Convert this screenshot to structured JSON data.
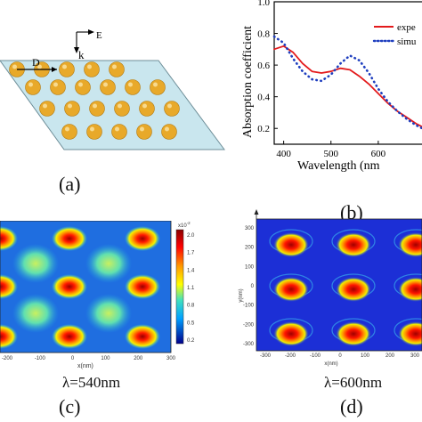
{
  "panel_a": {
    "field_label": "E",
    "k_label": "k",
    "d_label": "D",
    "caption": "(a)",
    "rows": [
      5,
      6,
      6,
      5
    ],
    "colors": {
      "slab": "#c9e6ee",
      "sphere": "#e8a92a"
    }
  },
  "panel_b": {
    "caption": "(b)",
    "chart_data": {
      "type": "line",
      "xlabel": "Wavelength (nm",
      "ylabel": "Absorption coefficient",
      "xticks": [
        "400",
        "500",
        "600"
      ],
      "yticks": [
        "0.2",
        "0.4",
        "0.6",
        "0.8",
        "1.0"
      ],
      "xlim": [
        380,
        700
      ],
      "ylim": [
        0.1,
        1.0
      ],
      "legend": [
        "expe",
        "simu"
      ],
      "legend_placement": "top-right",
      "series": [
        {
          "name": "expe",
          "color": "#e31a1c",
          "style": "solid",
          "x": [
            380,
            400,
            420,
            440,
            460,
            480,
            500,
            520,
            540,
            560,
            580,
            600,
            620,
            640,
            660,
            680,
            700
          ],
          "y": [
            0.7,
            0.72,
            0.68,
            0.61,
            0.56,
            0.55,
            0.56,
            0.58,
            0.57,
            0.53,
            0.48,
            0.42,
            0.36,
            0.31,
            0.27,
            0.23,
            0.2
          ]
        },
        {
          "name": "simu",
          "color": "#1f3fbf",
          "style": "dotted",
          "x": [
            380,
            400,
            420,
            440,
            460,
            480,
            500,
            520,
            540,
            560,
            580,
            600,
            620,
            640,
            660,
            680,
            700
          ],
          "y": [
            0.78,
            0.74,
            0.64,
            0.56,
            0.51,
            0.5,
            0.54,
            0.61,
            0.66,
            0.63,
            0.55,
            0.45,
            0.37,
            0.31,
            0.26,
            0.22,
            0.19
          ]
        }
      ]
    }
  },
  "panel_c": {
    "caption": "(c)",
    "wavelength": "λ=540nm",
    "xlabel": "x(nm)",
    "xticks": [
      "-200",
      "-100",
      "0",
      "100",
      "200",
      "300"
    ],
    "colorbar_exp": "x10",
    "colorbar_exp_sup": "-2",
    "colorbar_ticks": [
      "2.0",
      "1.7",
      "1.4",
      "1.1",
      "0.8",
      "0.5",
      "0.2"
    ]
  },
  "panel_d": {
    "caption": "(d)",
    "wavelength": "λ=600nm",
    "xlabel": "x(nm)",
    "ylabel": "y(nm)",
    "xticks": [
      "-300",
      "-200",
      "-100",
      "0",
      "100",
      "200",
      "300"
    ],
    "yticks": [
      "300",
      "200",
      "100",
      "0",
      "-100",
      "-200",
      "-300"
    ]
  }
}
